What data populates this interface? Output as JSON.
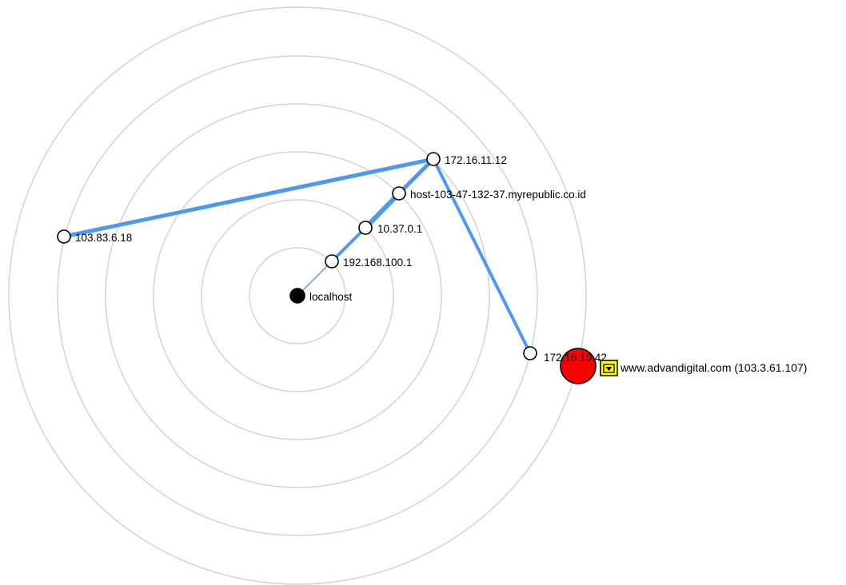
{
  "colors": {
    "ring": "#d3d3d3",
    "link": "#4f98f2",
    "hop_fill": "#ffffff",
    "localhost_fill": "#000000",
    "target_fill": "#ff0000",
    "filtered_icon": "#ffff00",
    "stroke": "#000000"
  },
  "hosts": {
    "localhost": {
      "label": "localhost"
    },
    "hop1": {
      "label": "192.168.100.1"
    },
    "hop2": {
      "label": "10.37.0.1"
    },
    "hop3": {
      "label": "host-103-47-132-37.myrepublic.co.id"
    },
    "hop4": {
      "label": "172.16.11.12"
    },
    "hop5": {
      "label": "103.83.6.18"
    },
    "hop6": {
      "label": "172.16.10.42"
    },
    "target": {
      "label": "www.advandigital.com (103.3.61.107)",
      "icon": "filtered-port-icon"
    }
  }
}
